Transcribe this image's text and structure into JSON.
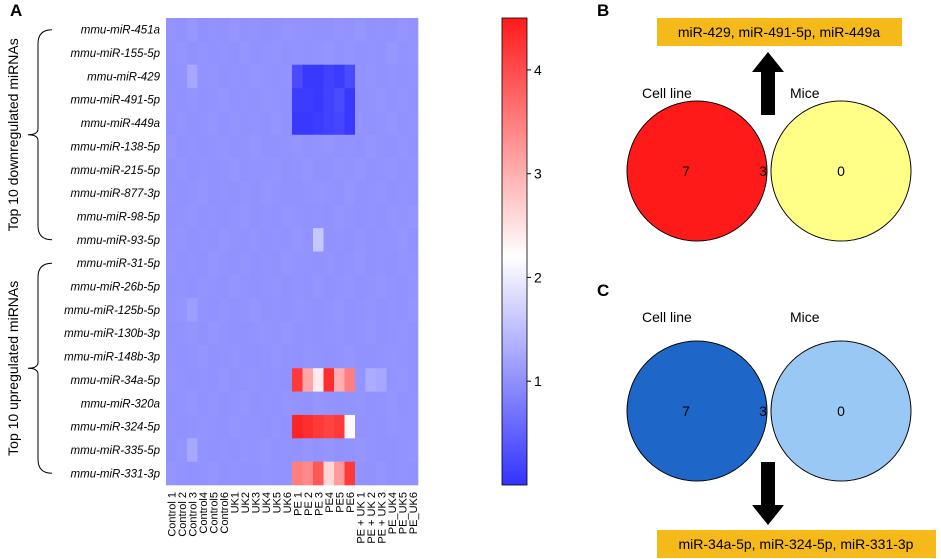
{
  "chart_data": [
    {
      "type": "heatmap",
      "panel": "A",
      "row_labels": [
        "mmu-miR-451a",
        "mmu-miR-155-5p",
        "mmu-miR-429",
        "mmu-miR-491-5p",
        "mmu-miR-449a",
        "mmu-miR-138-5p",
        "mmu-miR-215-5p",
        "mmu-miR-877-3p",
        "mmu-miR-98-5p",
        "mmu-miR-93-5p",
        "mmu-miR-31-5p",
        "mmu-miR-26b-5p",
        "mmu-miR-125b-5p",
        "mmu-miR-130b-3p",
        "mmu-miR-148b-3p",
        "mmu-miR-34a-5p",
        "mmu-miR-320a",
        "mmu-miR-324-5p",
        "mmu-miR-335-5p",
        "mmu-miR-331-3p"
      ],
      "col_labels": [
        "Control 1",
        "Control 2",
        "Control 3",
        "Control4",
        "Control5",
        "Control6",
        "UK1",
        "UK2",
        "UK3",
        "UK4",
        "UK5",
        "UK6",
        "PE 1",
        "PE 2",
        "PE 3",
        "PE4",
        "PE5",
        "PE6",
        "PE + UK 1",
        "PE + UK 2",
        "PE + UK 3",
        "PE_UK4",
        "PE_UK5",
        "PE_UK6"
      ],
      "groups": [
        {
          "label": "Top 10 downregulated  miRNAs",
          "rows": [
            0,
            9
          ]
        },
        {
          "label": "Top 10 upregulated  miRNAs",
          "rows": [
            10,
            19
          ]
        }
      ],
      "colorbar": {
        "min": 0,
        "max": 4.5,
        "ticks": [
          1,
          2,
          3,
          4
        ],
        "low_color": "#3333ff",
        "mid_color": "#ffffff",
        "high_color": "#ff1a1a",
        "mid_value": 2.2
      },
      "baseline_value": 1.0,
      "values": [
        [
          1.05,
          1.02,
          1.08,
          1.0,
          1.04,
          1.02,
          1.06,
          1.01,
          1.03,
          1.0,
          1.02,
          1.05,
          1.04,
          1.03,
          1.02,
          1.01,
          1.05,
          1.03,
          1.07,
          1.02,
          1.04,
          1.01,
          1.06,
          1.03
        ],
        [
          1.03,
          1.06,
          1.02,
          1.05,
          1.01,
          1.04,
          1.02,
          1.06,
          1.01,
          1.03,
          1.05,
          1.02,
          1.03,
          1.01,
          1.04,
          1.06,
          1.02,
          1.05,
          1.01,
          1.04,
          1.02,
          1.07,
          1.03,
          1.05
        ],
        [
          1.02,
          1.04,
          1.25,
          1.03,
          1.05,
          1.02,
          1.04,
          1.01,
          1.06,
          1.03,
          1.02,
          1.04,
          0.25,
          0.05,
          0.05,
          0.15,
          0.1,
          0.25,
          1.03,
          1.05,
          1.02,
          1.04,
          1.01,
          1.03
        ],
        [
          1.04,
          1.01,
          1.05,
          1.02,
          1.03,
          1.06,
          1.01,
          1.04,
          1.02,
          1.05,
          1.03,
          1.01,
          0.1,
          0.1,
          0.05,
          0.15,
          0.25,
          0.05,
          1.02,
          1.04,
          1.06,
          1.01,
          1.05,
          1.02
        ],
        [
          1.01,
          1.05,
          1.02,
          1.04,
          1.06,
          1.01,
          1.05,
          1.02,
          1.04,
          1.01,
          1.06,
          1.03,
          0.05,
          0.05,
          0.1,
          0.15,
          0.2,
          0.05,
          1.04,
          1.01,
          1.03,
          1.06,
          1.02,
          1.04
        ],
        [
          1.06,
          1.02,
          1.04,
          1.01,
          1.03,
          1.05,
          1.02,
          1.04,
          1.06,
          1.02,
          1.01,
          1.04,
          1.05,
          1.02,
          1.03,
          1.05,
          1.01,
          1.04,
          1.02,
          1.06,
          1.03,
          1.01,
          1.05,
          1.02
        ],
        [
          1.02,
          1.05,
          1.01,
          1.04,
          1.02,
          1.03,
          1.06,
          1.01,
          1.04,
          1.03,
          1.05,
          1.02,
          1.04,
          1.06,
          1.02,
          1.01,
          1.05,
          1.03,
          1.06,
          1.02,
          1.04,
          1.05,
          1.01,
          1.03
        ],
        [
          1.04,
          1.01,
          1.03,
          1.06,
          1.02,
          1.04,
          1.01,
          1.05,
          1.02,
          1.06,
          1.03,
          1.01,
          1.02,
          1.04,
          1.05,
          1.03,
          1.01,
          1.06,
          1.02,
          1.03,
          1.05,
          1.02,
          1.04,
          1.01
        ],
        [
          1.01,
          1.03,
          1.05,
          1.02,
          1.04,
          1.01,
          1.03,
          1.06,
          1.02,
          1.04,
          1.01,
          1.05,
          1.03,
          1.01,
          1.04,
          1.02,
          1.06,
          1.03,
          1.01,
          1.04,
          1.02,
          1.05,
          1.03,
          1.06
        ],
        [
          1.03,
          1.05,
          1.02,
          1.04,
          1.01,
          1.06,
          1.03,
          1.02,
          1.05,
          1.01,
          1.04,
          1.02,
          1.06,
          1.03,
          1.6,
          1.02,
          1.04,
          1.01,
          1.05,
          1.02,
          1.03,
          1.04,
          1.06,
          1.01
        ],
        [
          1.05,
          1.02,
          1.04,
          1.01,
          1.06,
          1.03,
          1.02,
          1.05,
          1.01,
          1.04,
          1.02,
          1.06,
          1.03,
          1.04,
          1.01,
          1.05,
          1.02,
          1.04,
          1.06,
          1.01,
          1.03,
          1.02,
          1.05,
          1.04
        ],
        [
          1.02,
          1.04,
          1.01,
          1.05,
          1.03,
          1.02,
          1.06,
          1.04,
          1.01,
          1.03,
          1.05,
          1.02,
          1.04,
          1.01,
          1.06,
          1.02,
          1.03,
          1.05,
          1.01,
          1.04,
          1.06,
          1.03,
          1.02,
          1.05
        ],
        [
          1.04,
          1.06,
          1.15,
          1.03,
          1.01,
          1.05,
          1.02,
          1.03,
          1.06,
          1.02,
          1.04,
          1.01,
          1.05,
          1.03,
          1.02,
          1.04,
          1.06,
          1.01,
          1.03,
          1.05,
          1.02,
          1.04,
          1.01,
          1.06
        ],
        [
          1.01,
          1.03,
          1.05,
          1.02,
          1.06,
          1.04,
          1.01,
          1.02,
          1.04,
          1.05,
          1.03,
          1.06,
          1.02,
          1.04,
          1.01,
          1.03,
          1.05,
          1.02,
          1.04,
          1.06,
          1.01,
          1.03,
          1.05,
          1.02
        ],
        [
          1.03,
          1.01,
          1.04,
          1.06,
          1.02,
          1.03,
          1.05,
          1.01,
          1.02,
          1.04,
          1.06,
          1.03,
          1.01,
          1.05,
          1.04,
          1.02,
          1.03,
          1.06,
          1.02,
          1.01,
          1.04,
          1.05,
          1.03,
          1.02
        ],
        [
          1.05,
          1.03,
          1.02,
          1.04,
          1.01,
          1.06,
          1.02,
          1.04,
          1.05,
          1.01,
          1.03,
          1.02,
          4.2,
          3.1,
          2.4,
          4.3,
          3.0,
          3.5,
          1.05,
          1.3,
          1.25,
          1.03,
          1.06,
          1.02
        ],
        [
          1.02,
          1.04,
          1.06,
          1.01,
          1.05,
          1.02,
          1.03,
          1.06,
          1.02,
          1.04,
          1.01,
          1.05,
          1.03,
          1.02,
          1.06,
          1.04,
          1.01,
          1.03,
          1.05,
          1.02,
          1.04,
          1.06,
          1.01,
          1.03
        ],
        [
          1.04,
          1.02,
          1.03,
          1.05,
          1.04,
          1.01,
          1.06,
          1.03,
          1.04,
          1.02,
          1.05,
          1.01,
          4.4,
          4.3,
          4.2,
          4.1,
          4.2,
          2.25,
          1.02,
          1.04,
          1.01,
          1.05,
          1.03,
          1.04
        ],
        [
          1.01,
          1.05,
          1.25,
          1.03,
          1.02,
          1.04,
          1.01,
          1.05,
          1.03,
          1.06,
          1.02,
          1.04,
          1.01,
          1.06,
          1.03,
          1.05,
          1.02,
          1.04,
          1.06,
          1.03,
          1.01,
          1.02,
          1.04,
          1.05
        ],
        [
          1.06,
          1.03,
          1.01,
          1.04,
          1.06,
          1.02,
          1.04,
          1.02,
          1.01,
          1.05,
          1.03,
          1.04,
          3.5,
          3.4,
          3.9,
          2.6,
          3.2,
          4.2,
          1.04,
          1.02,
          1.06,
          1.01,
          1.03,
          1.02
        ]
      ]
    },
    {
      "type": "venn",
      "panel": "B",
      "sets": [
        "Cell line",
        "Mice"
      ],
      "counts": {
        "left_only": "7",
        "intersection": "3",
        "right_only": "0"
      },
      "colors": {
        "left": "#ff1a1a",
        "right": "#ffff88",
        "intersection": "#ffa500",
        "box": "#f5b91a"
      },
      "callout": "miR-429, miR-491-5p, miR-449a",
      "arrow_direction": "up"
    },
    {
      "type": "venn",
      "panel": "C",
      "sets": [
        "Cell line",
        "Mice"
      ],
      "counts": {
        "left_only": "7",
        "intersection": "3",
        "right_only": "0"
      },
      "colors": {
        "left": "#1e66c8",
        "right": "#99c8f5",
        "intersection": "#2f86e6",
        "box": "#f5b91a"
      },
      "callout": "miR-34a-5p, miR-324-5p, miR-331-3p",
      "arrow_direction": "down"
    }
  ]
}
